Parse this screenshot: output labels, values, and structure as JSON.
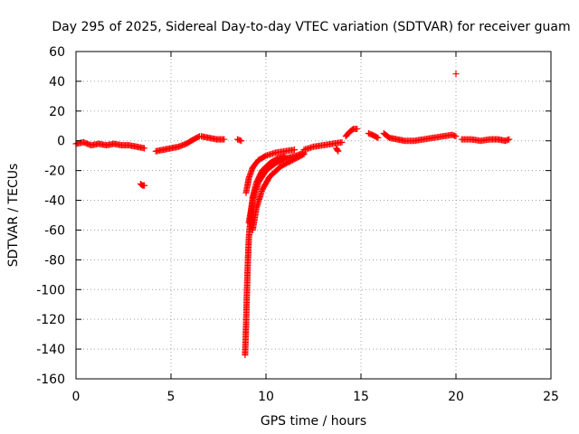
{
  "chart_data": {
    "type": "scatter",
    "title": "Day 295 of 2025, Sidereal Day-to-day VTEC variation (SDTVAR) for receiver guam",
    "xlabel": "GPS time / hours",
    "ylabel": "SDTVAR / TECUs",
    "xlim": [
      0,
      25
    ],
    "ylim": [
      -160,
      60
    ],
    "xticks": [
      0,
      5,
      10,
      15,
      20,
      25
    ],
    "xtick_labels": [
      "0",
      "5",
      "10",
      "15",
      "20",
      "25"
    ],
    "yticks": [
      -160,
      -140,
      -120,
      -100,
      -80,
      -60,
      -40,
      -20,
      0,
      20,
      40,
      60
    ],
    "ytick_labels": [
      "-160",
      "-140",
      "-120",
      "-100",
      "-80",
      "-60",
      "-40",
      "-20",
      "0",
      "20",
      "40",
      "60"
    ],
    "grid": true,
    "marker": "plus",
    "color": "#ff0000",
    "segments": [
      {
        "name": "baseline-early",
        "x": [
          0.0,
          0.4,
          0.8,
          1.2,
          1.6,
          2.0,
          2.4,
          2.8,
          3.2,
          3.6
        ],
        "y": [
          -2,
          -1,
          -3,
          -2,
          -3,
          -2,
          -3,
          -3,
          -4,
          -5
        ]
      },
      {
        "name": "early-outlier",
        "x": [
          3.4,
          3.5,
          3.6
        ],
        "y": [
          -29,
          -30,
          -30
        ]
      },
      {
        "name": "rise-morning",
        "x": [
          4.2,
          4.6,
          5.0,
          5.4,
          5.8,
          6.2,
          6.5
        ],
        "y": [
          -7,
          -6,
          -5,
          -4,
          -2,
          1,
          3
        ]
      },
      {
        "name": "mid-morning",
        "x": [
          6.6,
          7.0,
          7.4,
          7.8
        ],
        "y": [
          3,
          2,
          1,
          1
        ]
      },
      {
        "name": "short-cluster",
        "x": [
          8.5,
          8.7
        ],
        "y": [
          1,
          0
        ]
      },
      {
        "name": "dip-arc-deep",
        "x": [
          8.9,
          8.95,
          9.0,
          9.05,
          9.1,
          9.2,
          9.3,
          9.5,
          9.8,
          10.2,
          10.6,
          11.0
        ],
        "y": [
          -144,
          -125,
          -100,
          -80,
          -65,
          -50,
          -38,
          -28,
          -20,
          -15,
          -12,
          -10
        ]
      },
      {
        "name": "dip-arc-upper",
        "x": [
          8.95,
          9.1,
          9.3,
          9.6,
          10.0,
          10.5,
          11.0,
          11.5
        ],
        "y": [
          -35,
          -25,
          -18,
          -13,
          -10,
          -8,
          -7,
          -6
        ]
      },
      {
        "name": "dip-arc-mid",
        "x": [
          9.1,
          9.3,
          9.6,
          10.0,
          10.5,
          11.0,
          11.6,
          12.0
        ],
        "y": [
          -55,
          -40,
          -28,
          -20,
          -15,
          -12,
          -10,
          -8
        ]
      },
      {
        "name": "dip-arc-late",
        "x": [
          9.3,
          9.5,
          9.8,
          10.2,
          10.8,
          11.4,
          12.0
        ],
        "y": [
          -60,
          -45,
          -33,
          -24,
          -17,
          -13,
          -9
        ]
      },
      {
        "name": "recovery",
        "x": [
          12.0,
          12.5,
          13.0,
          13.5,
          14.0
        ],
        "y": [
          -6,
          -4,
          -3,
          -2,
          -1
        ]
      },
      {
        "name": "gap-point",
        "x": [
          13.7,
          13.8
        ],
        "y": [
          -5,
          -7
        ]
      },
      {
        "name": "peak-afternoon",
        "x": [
          14.2,
          14.4,
          14.6,
          14.8
        ],
        "y": [
          3,
          6,
          8,
          8
        ]
      },
      {
        "name": "post-peak",
        "x": [
          15.4,
          15.6,
          15.9
        ],
        "y": [
          5,
          4,
          2
        ]
      },
      {
        "name": "afternoon-wave",
        "x": [
          16.2,
          16.5,
          16.9,
          17.3,
          17.8,
          18.3,
          18.8,
          19.3,
          19.8,
          20.0
        ],
        "y": [
          5,
          2,
          1,
          0,
          0,
          1,
          2,
          3,
          4,
          3
        ]
      },
      {
        "name": "evening",
        "x": [
          20.3,
          20.8,
          21.3,
          21.8,
          22.2,
          22.6,
          22.8
        ],
        "y": [
          1,
          1,
          0,
          1,
          1,
          0,
          1
        ]
      },
      {
        "name": "outlier-high",
        "x": [
          20.0
        ],
        "y": [
          45
        ]
      }
    ]
  }
}
